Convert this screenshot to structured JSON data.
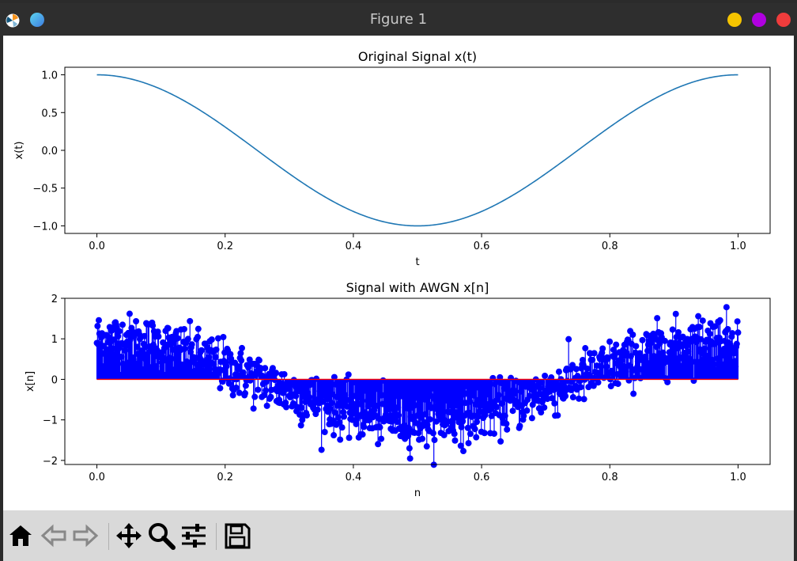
{
  "window": {
    "title": "Figure 1",
    "controls": {
      "minimize_color": "#f5c400",
      "maximize_color": "#b000e0",
      "close_color": "#f03c3c"
    }
  },
  "toolbar": {
    "tools": [
      {
        "name": "home-icon"
      },
      {
        "name": "back-arrow-icon"
      },
      {
        "name": "forward-arrow-icon"
      },
      {
        "name": "pan-icon"
      },
      {
        "name": "zoom-icon"
      },
      {
        "name": "configure-subplots-icon"
      },
      {
        "name": "save-icon"
      }
    ]
  },
  "chart_data": [
    {
      "type": "line",
      "title": "Original Signal x(t)",
      "xlabel": "t",
      "ylabel": "x(t)",
      "xlim": [
        -0.05,
        1.05
      ],
      "ylim": [
        -1.1,
        1.1
      ],
      "xticks": [
        "0.0",
        "0.2",
        "0.4",
        "0.6",
        "0.8",
        "1.0"
      ],
      "yticks": [
        "1.0",
        "0.5",
        "0.0",
        "−0.5",
        "−1.0"
      ],
      "color": "#1f77b4",
      "series": [
        {
          "function": "cos(2*pi*t)",
          "x_range": [
            0,
            1
          ]
        }
      ]
    },
    {
      "type": "stem",
      "title": "Signal with AWGN x[n]",
      "xlabel": "n",
      "ylabel": "x[n]",
      "xlim": [
        -0.05,
        1.05
      ],
      "ylim": [
        -2.1,
        2.0
      ],
      "xticks": [
        "0.0",
        "0.2",
        "0.4",
        "0.6",
        "0.8",
        "1.0"
      ],
      "yticks": [
        "2",
        "1",
        "0",
        "−1",
        "−2"
      ],
      "color": "#0000ff",
      "series": [
        {
          "underlying": "cos(2*pi*n)",
          "x_range": [
            0,
            1
          ],
          "noise": "AWGN",
          "approx_samples": 1000
        }
      ]
    }
  ]
}
